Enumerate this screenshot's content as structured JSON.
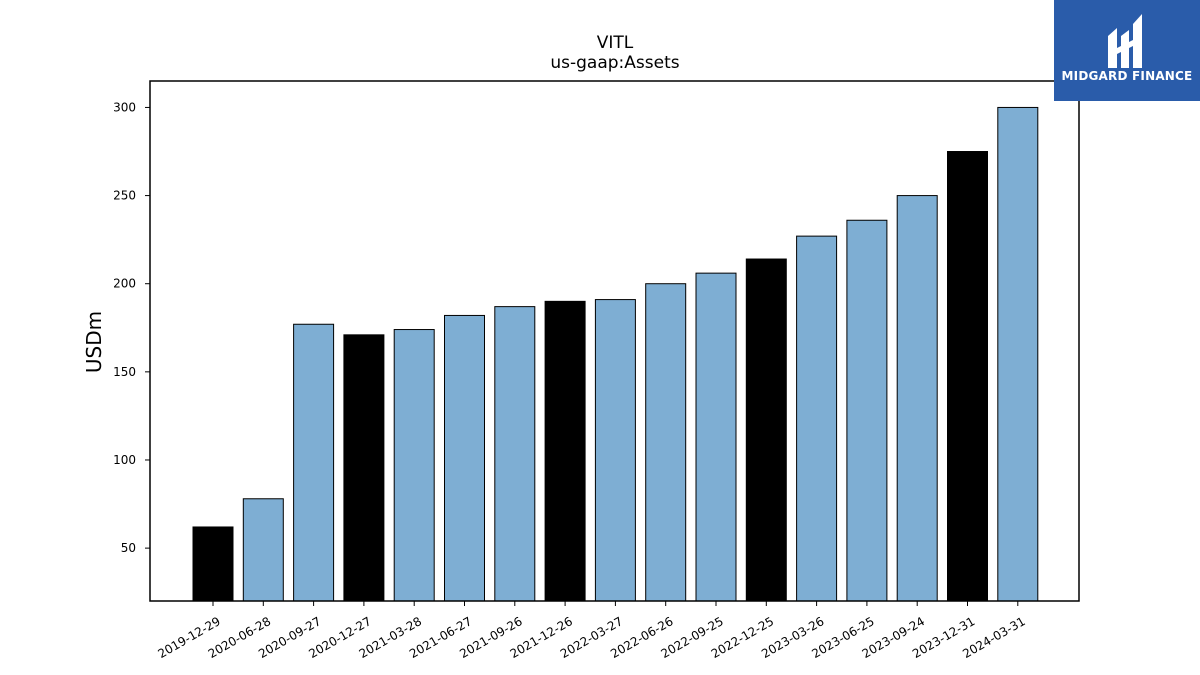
{
  "chart_data": {
    "type": "bar",
    "title": "VITL",
    "subtitle": "us-gaap:Assets",
    "xlabel": "",
    "ylabel": "USDm",
    "ylim": [
      20,
      315
    ],
    "yticks": [
      50,
      100,
      150,
      200,
      250,
      300
    ],
    "grid": false,
    "categories": [
      "2019-12-29",
      "2020-06-28",
      "2020-09-27",
      "2020-12-27",
      "2021-03-28",
      "2021-06-27",
      "2021-09-26",
      "2021-12-26",
      "2022-03-27",
      "2022-06-26",
      "2022-09-25",
      "2022-12-25",
      "2023-03-26",
      "2023-06-25",
      "2023-09-24",
      "2023-12-31",
      "2024-03-31"
    ],
    "values": [
      62,
      78,
      177,
      171,
      174,
      182,
      187,
      190,
      191,
      200,
      206,
      214,
      227,
      236,
      250,
      275,
      300
    ],
    "bar_colors": [
      "#000000",
      "#7eaed3",
      "#7eaed3",
      "#000000",
      "#7eaed3",
      "#7eaed3",
      "#7eaed3",
      "#000000",
      "#7eaed3",
      "#7eaed3",
      "#7eaed3",
      "#000000",
      "#7eaed3",
      "#7eaed3",
      "#7eaed3",
      "#000000",
      "#7eaed3"
    ]
  },
  "logo": {
    "text": "MIDGARD FINANCE",
    "background": "#2a5caa"
  }
}
